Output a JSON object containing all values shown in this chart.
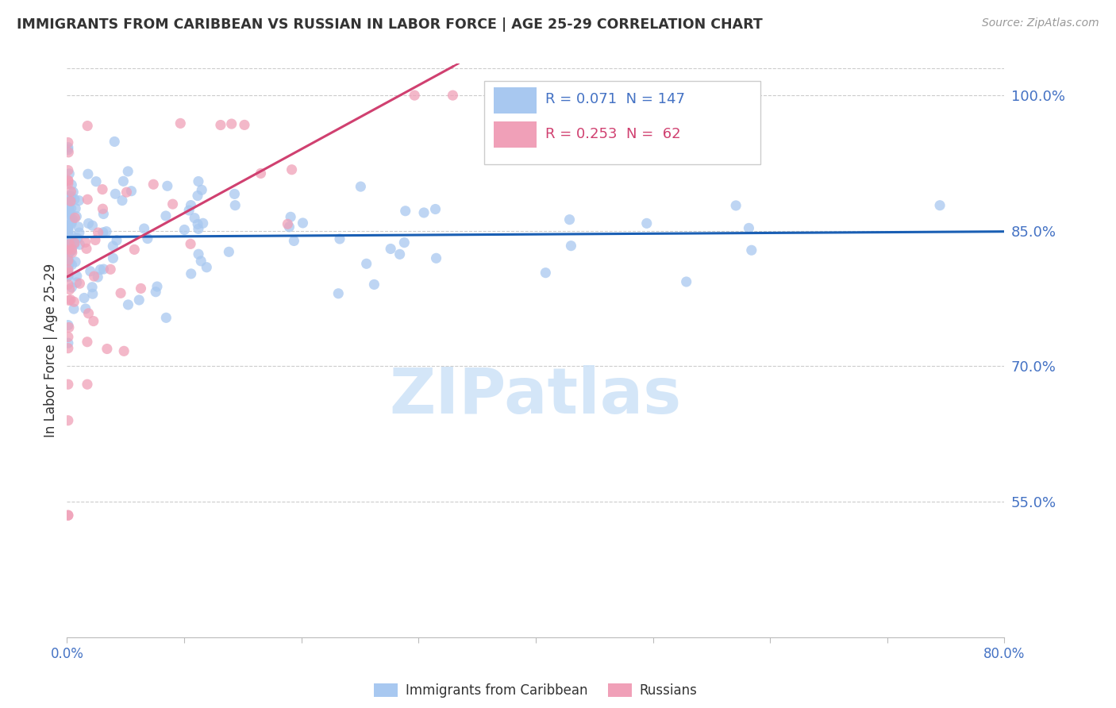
{
  "title": "IMMIGRANTS FROM CARIBBEAN VS RUSSIAN IN LABOR FORCE | AGE 25-29 CORRELATION CHART",
  "source": "Source: ZipAtlas.com",
  "ylabel": "In Labor Force | Age 25-29",
  "legend_blue_label": "Immigrants from Caribbean",
  "legend_pink_label": "Russians",
  "R_blue": 0.071,
  "N_blue": 147,
  "R_pink": 0.253,
  "N_pink": 62,
  "blue_color": "#a8c8f0",
  "pink_color": "#f0a0b8",
  "line_blue": "#1a5fb4",
  "line_pink": "#d04070",
  "title_color": "#333333",
  "source_color": "#999999",
  "axis_label_color": "#4472c4",
  "grid_color": "#cccccc",
  "watermark_color": "#d0e4f8",
  "xmin": 0.0,
  "xmax": 0.8,
  "ymin": 0.4,
  "ymax": 1.035,
  "ytick_top": 1.0,
  "ytick_85": 0.85,
  "ytick_70": 0.7,
  "ytick_55": 0.55,
  "right_ytick_labels": [
    "100.0%",
    "85.0%",
    "70.0%",
    "55.0%"
  ],
  "right_ytick_vals": [
    1.0,
    0.85,
    0.7,
    0.55
  ]
}
